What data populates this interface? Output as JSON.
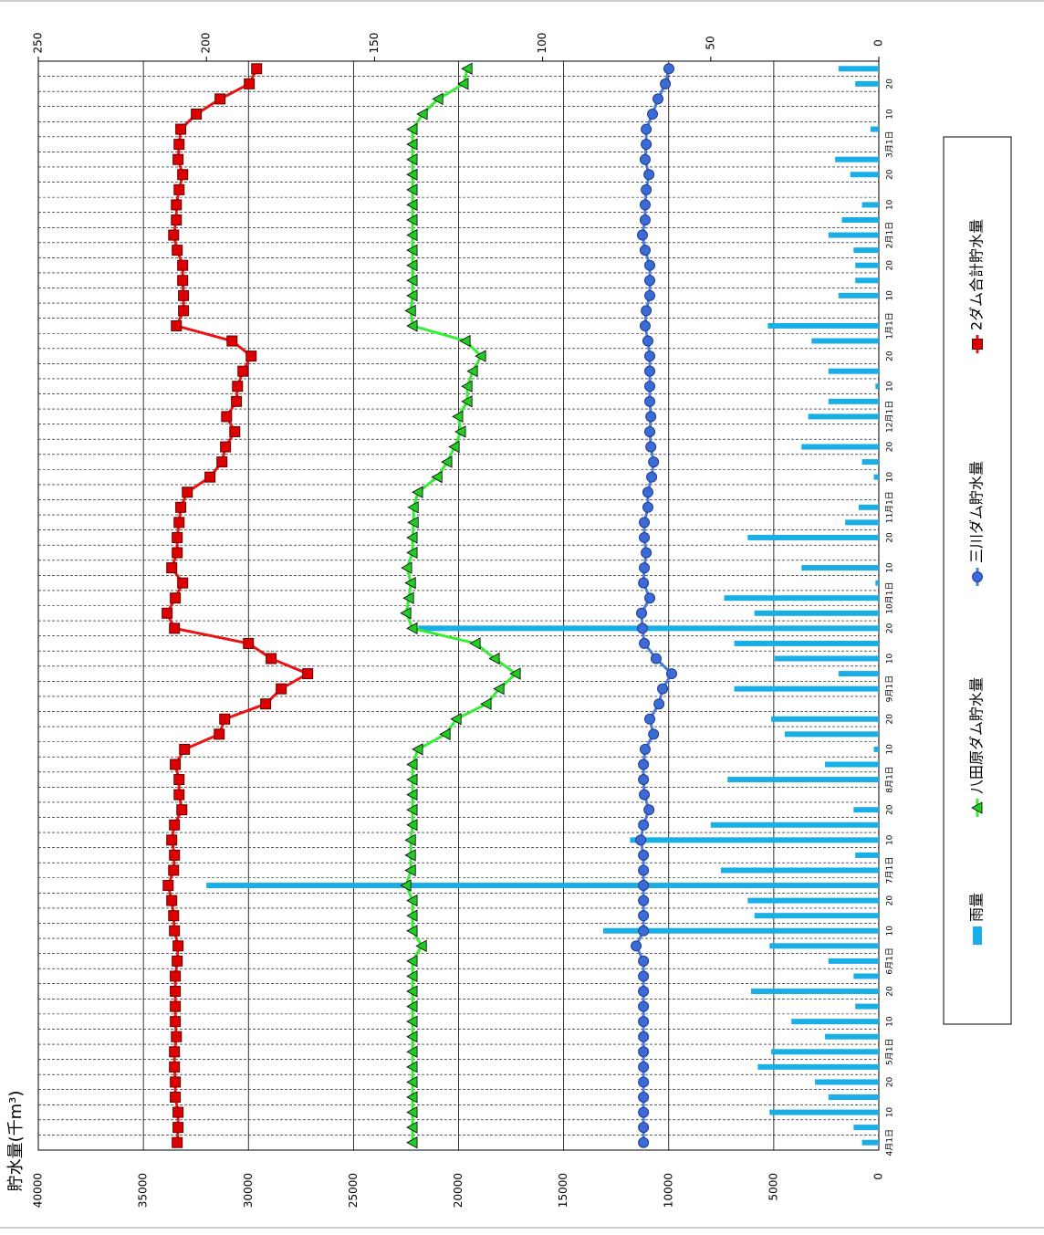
{
  "chart_data": {
    "type": "line",
    "y_axis_label": "貯水量(千m³)",
    "categories": [
      "4月1日",
      null,
      "10",
      null,
      "20",
      null,
      "5月1日",
      null,
      "10",
      null,
      "20",
      null,
      "6月1日",
      null,
      "10",
      null,
      "20",
      null,
      "7月1日",
      null,
      "10",
      null,
      "20",
      null,
      "8月1日",
      null,
      "10",
      null,
      "20",
      null,
      "9月1日",
      null,
      "10",
      null,
      "20",
      null,
      "10月1日",
      null,
      "10",
      null,
      "20",
      null,
      "11月1日",
      null,
      "10",
      null,
      "20",
      null,
      "12月1日",
      null,
      "10",
      null,
      "20",
      null,
      "1月1日",
      null,
      "10",
      null,
      "20",
      null,
      "2月1日",
      null,
      "10",
      null,
      "20",
      null,
      "3月1日",
      null,
      "10",
      null,
      "20",
      null
    ],
    "ylim": [
      0,
      40000
    ],
    "yticks": [
      0,
      5000,
      10000,
      15000,
      20000,
      25000,
      30000,
      35000,
      40000
    ],
    "y2lim": [
      0,
      250
    ],
    "y2ticks": [
      0,
      50,
      100,
      150,
      200,
      250
    ],
    "grid": true,
    "series": [
      {
        "name": "雨量",
        "type": "bar",
        "axis": "y2",
        "color": "#1aaee6",
        "values": [
          5,
          7.5,
          32.5,
          15,
          19,
          36,
          32,
          16,
          26,
          7,
          38,
          7.5,
          15,
          32.5,
          82,
          37,
          39,
          200,
          47,
          7,
          74,
          50,
          7.5,
          0,
          45,
          16,
          1.5,
          28,
          32,
          0,
          43,
          12,
          31,
          43,
          137,
          37,
          46,
          1,
          23,
          0,
          39,
          10,
          6,
          0,
          1.5,
          5,
          23,
          0,
          21,
          15,
          1,
          15,
          0,
          20,
          33,
          0,
          12,
          7,
          7,
          7.5,
          15,
          11,
          5,
          0,
          8.5,
          13,
          0,
          2.5,
          0,
          0,
          7,
          12
        ]
      },
      {
        "name": "八田原ダム貯水量",
        "marker": "triangle",
        "color": "#33ee33",
        "marker_color": "#22cc22",
        "values": [
          22190,
          22190,
          22190,
          22190,
          22190,
          22190,
          22190,
          22190,
          22190,
          22190,
          22190,
          22190,
          22190,
          21750,
          22190,
          22190,
          22190,
          22490,
          22270,
          22270,
          22270,
          22190,
          22190,
          22190,
          22190,
          22190,
          21930,
          20620,
          20100,
          18670,
          18060,
          17280,
          18280,
          19190,
          22190,
          22490,
          22360,
          22270,
          22450,
          22190,
          22190,
          22140,
          22140,
          21930,
          21010,
          20540,
          20190,
          19890,
          20020,
          19580,
          19580,
          19320,
          18930,
          19670,
          22190,
          22270,
          22190,
          22190,
          22190,
          22190,
          22190,
          22190,
          22190,
          22190,
          22190,
          22190,
          22190,
          22190,
          21710,
          20970,
          19760,
          19580
        ]
      },
      {
        "name": "三川ダム貯水量",
        "marker": "circle",
        "color": "#4a7be0",
        "marker_color": "#3b6bd6",
        "values": [
          11200,
          11200,
          11200,
          11200,
          11200,
          11200,
          11200,
          11200,
          11200,
          11200,
          11200,
          11200,
          11200,
          11550,
          11200,
          11200,
          11200,
          11200,
          11200,
          11200,
          11330,
          11200,
          10940,
          11160,
          11200,
          11200,
          11120,
          10720,
          10900,
          10460,
          10290,
          9860,
          10600,
          11160,
          11250,
          11290,
          10900,
          11200,
          11160,
          11070,
          11160,
          11160,
          10990,
          10990,
          10810,
          10720,
          10850,
          10900,
          10850,
          10900,
          10900,
          10900,
          10900,
          10990,
          11120,
          11070,
          10900,
          10900,
          10900,
          11120,
          11250,
          11120,
          11120,
          11070,
          10940,
          11120,
          11070,
          11070,
          10770,
          10510,
          10160,
          9990
        ]
      },
      {
        "name": "2ダム合計貯水量",
        "marker": "square",
        "color": "#e81414",
        "marker_color": "#dd0000",
        "values": [
          33390,
          33350,
          33350,
          33480,
          33480,
          33520,
          33520,
          33430,
          33480,
          33480,
          33480,
          33480,
          33390,
          33350,
          33520,
          33560,
          33650,
          33820,
          33560,
          33520,
          33650,
          33520,
          33170,
          33300,
          33300,
          33480,
          33040,
          31390,
          31130,
          29180,
          28440,
          27180,
          28920,
          30000,
          33520,
          33870,
          33480,
          33130,
          33650,
          33390,
          33390,
          33300,
          33220,
          32910,
          31830,
          31260,
          31090,
          30650,
          31040,
          30570,
          30520,
          30260,
          29870,
          30780,
          33430,
          33090,
          33090,
          33130,
          33130,
          33390,
          33560,
          33430,
          33430,
          33300,
          33130,
          33350,
          33300,
          33220,
          32480,
          31350,
          29960,
          29610
        ]
      }
    ]
  }
}
